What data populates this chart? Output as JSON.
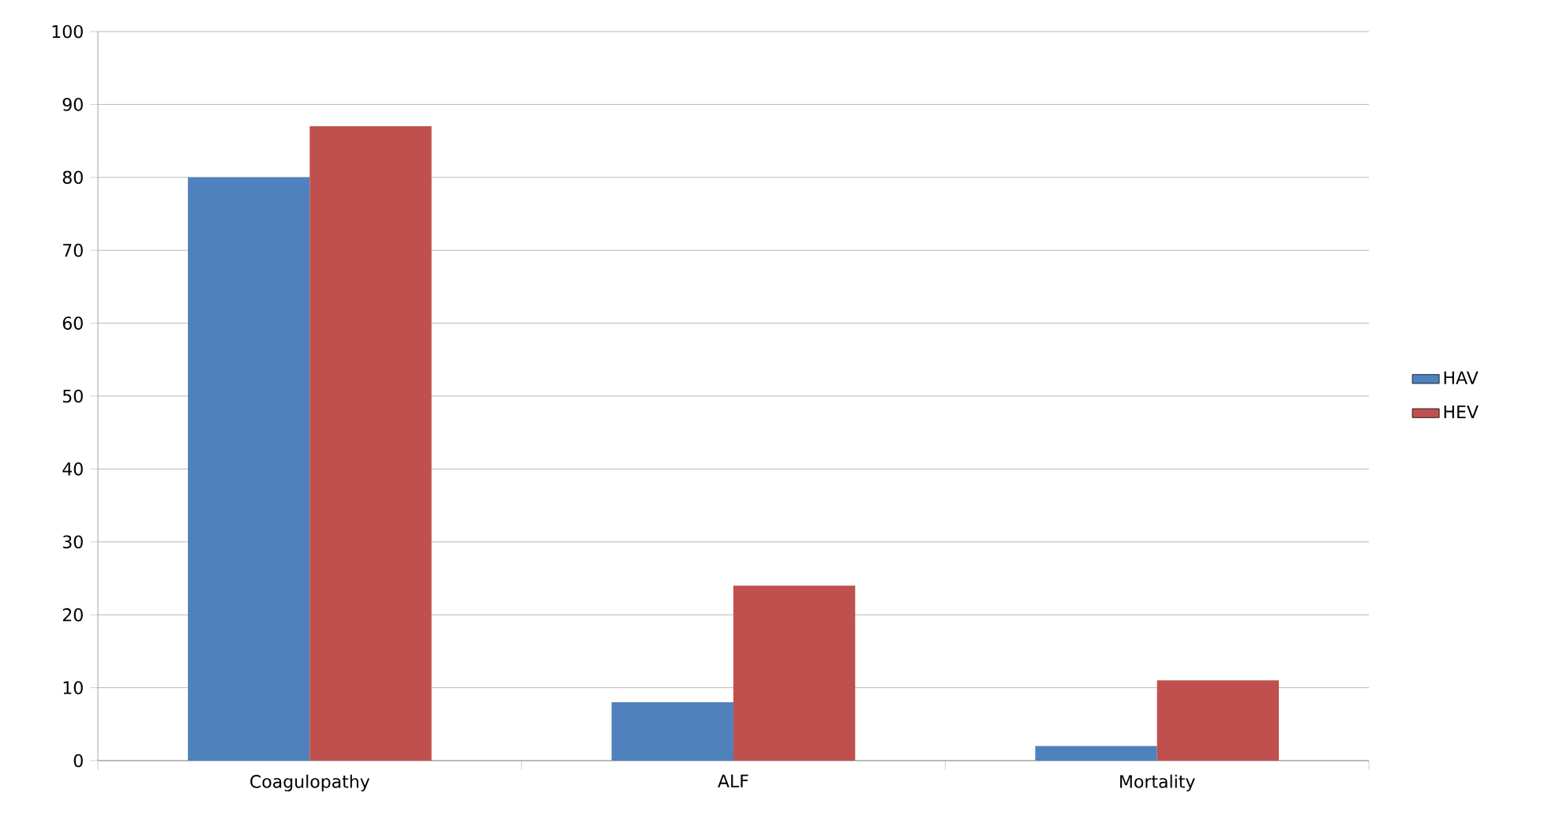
{
  "chart_data": {
    "type": "bar",
    "categories": [
      "Coagulopathy",
      "ALF",
      "Mortality"
    ],
    "series": [
      {
        "name": "HAV",
        "color": "#4f81bd",
        "values": [
          80,
          8,
          2
        ]
      },
      {
        "name": "HEV",
        "color": "#c0504d",
        "values": [
          87,
          24,
          11
        ]
      }
    ],
    "ylim": [
      0,
      100
    ],
    "yticks": [
      0,
      10,
      20,
      30,
      40,
      50,
      60,
      70,
      80,
      90,
      100
    ],
    "grid": "y",
    "legend": "right"
  }
}
